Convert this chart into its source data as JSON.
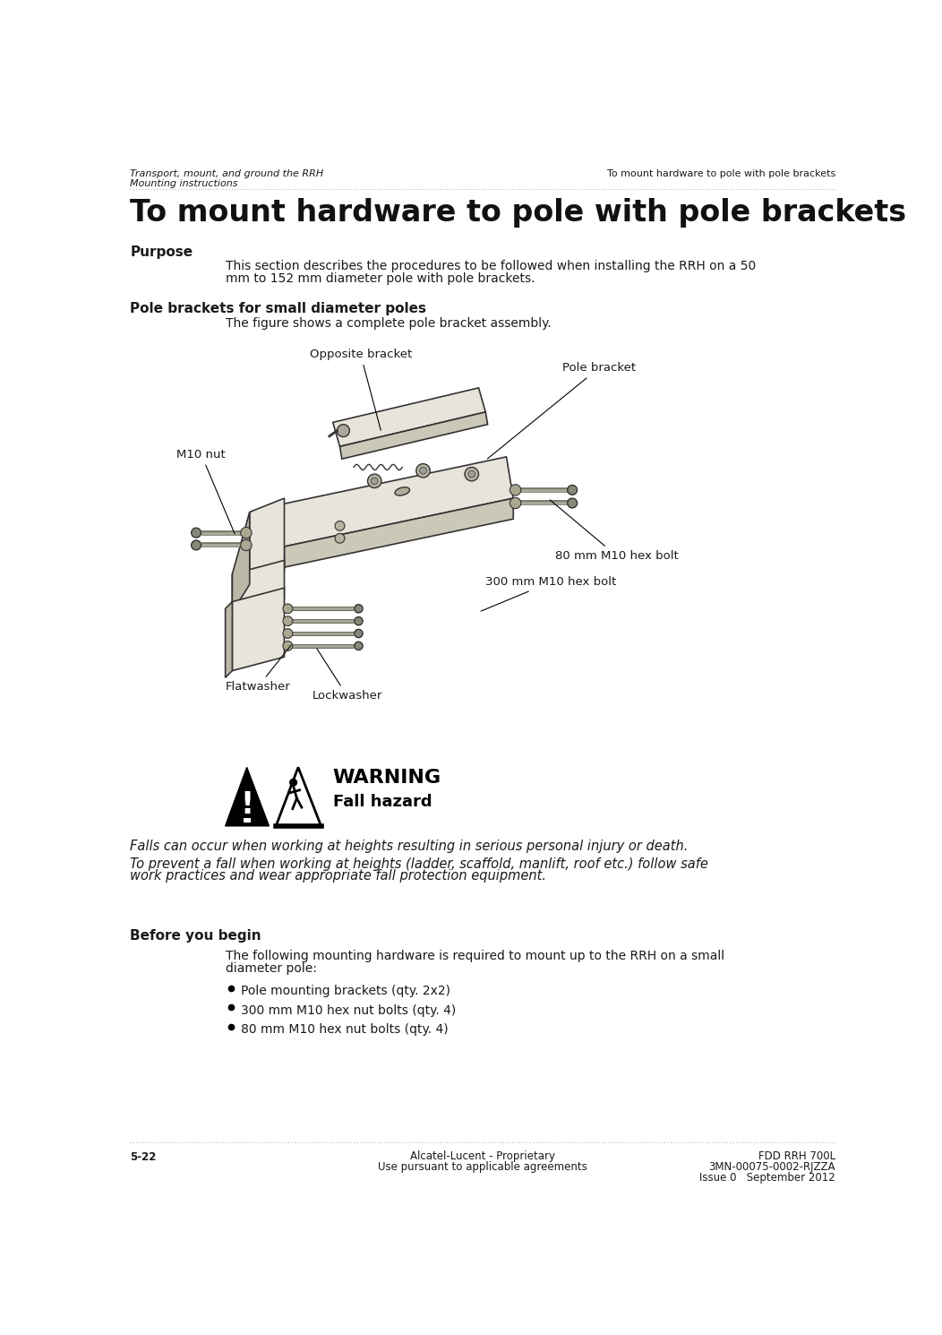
{
  "bg_color": "#ffffff",
  "header_left_line1": "Transport, mount, and ground the RRH",
  "header_left_line2": "Mounting instructions",
  "header_right": "To mount hardware to pole with pole brackets",
  "main_title": "To mount hardware to pole with pole brackets",
  "purpose_heading": "Purpose",
  "purpose_text_line1": "This section describes the procedures to be followed when installing the RRH on a 50",
  "purpose_text_line2": "mm to 152 mm diameter pole with pole brackets.",
  "pole_section_heading": "Pole brackets for small diameter poles",
  "pole_section_text": "The figure shows a complete pole bracket assembly.",
  "warning_title": "WARNING",
  "warning_subtitle": "Fall hazard",
  "warning_line1": "Falls can occur when working at heights resulting in serious personal injury or death.",
  "warning_line2a": "To prevent a fall when working at heights (ladder, scaffold, manlift, roof etc.) follow safe",
  "warning_line2b": "work practices and wear appropriate fall protection equipment.",
  "before_heading": "Before you begin",
  "before_text_line1": "The following mounting hardware is required to mount up to the RRH on a small",
  "before_text_line2": "diameter pole:",
  "bullet1": "Pole mounting brackets (qty. 2x2)",
  "bullet2": "300 mm M10 hex nut bolts (qty. 4)",
  "bullet3": "80 mm M10 hex nut bolts (qty. 4)",
  "footer_left": "5-22",
  "footer_center_line1": "Alcatel-Lucent - Proprietary",
  "footer_center_line2": "Use pursuant to applicable agreements",
  "footer_right_line1": "FDD RRH 700L",
  "footer_right_line2": "3MN-00075-0002-RJZZA",
  "footer_right_line3": "Issue 0   September 2012",
  "label_opposite_bracket": "Opposite bracket",
  "label_pole_bracket": "Pole bracket",
  "label_m10_nut": "M10 nut",
  "label_80mm": "80 mm M10 hex bolt",
  "label_300mm": "300 mm M10 hex bolt",
  "label_lockwasher": "Lockwasher",
  "label_flatwasher": "Flatwasher",
  "text_color": "#1a1a1a",
  "line_color": "#555555",
  "fig_color": "#e8e4dc"
}
